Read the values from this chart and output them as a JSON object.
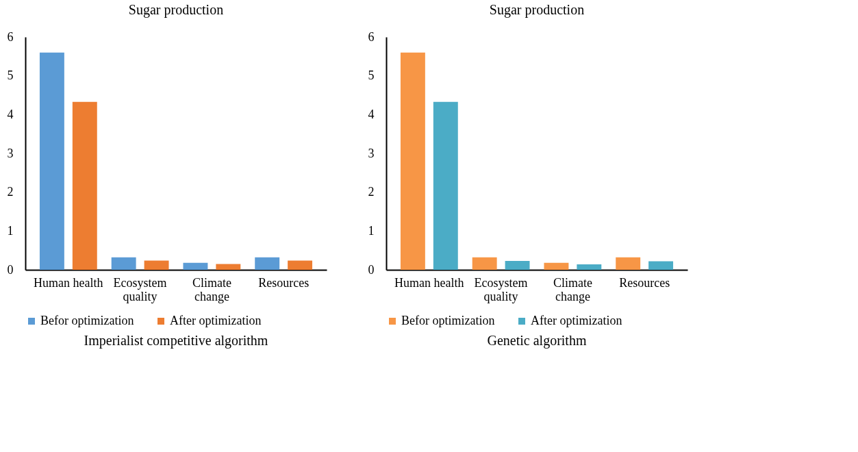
{
  "chart_data": [
    {
      "type": "bar",
      "title": "Sugar production",
      "categories": [
        "Human health",
        "Ecosystem quality",
        "Climate change",
        "Resources"
      ],
      "series": [
        {
          "name": "Befor optimization",
          "color": "#5b9bd5",
          "values": [
            5.6,
            0.32,
            0.18,
            0.32
          ]
        },
        {
          "name": "After optimization",
          "color": "#ed7d31",
          "values": [
            4.33,
            0.24,
            0.15,
            0.24
          ]
        }
      ],
      "ylim": [
        0,
        6
      ],
      "yticks": [
        0,
        1,
        2,
        3,
        4,
        5,
        6
      ],
      "grid": false,
      "legend": "bottom",
      "annotations": [
        "Imperialist competitive algorithm"
      ]
    },
    {
      "type": "bar",
      "title": "Sugar production",
      "categories": [
        "Human health",
        "Ecosystem quality",
        "Climate change",
        "Resources"
      ],
      "series": [
        {
          "name": "Befor optimization",
          "color": "#f79646",
          "values": [
            5.6,
            0.32,
            0.18,
            0.32
          ]
        },
        {
          "name": "After optimization",
          "color": "#4bacc6",
          "values": [
            4.33,
            0.23,
            0.14,
            0.22
          ]
        }
      ],
      "ylim": [
        0,
        6
      ],
      "yticks": [
        0,
        1,
        2,
        3,
        4,
        5,
        6
      ],
      "grid": false,
      "legend": "bottom",
      "annotations": [
        "Genetic algorithm"
      ]
    }
  ]
}
